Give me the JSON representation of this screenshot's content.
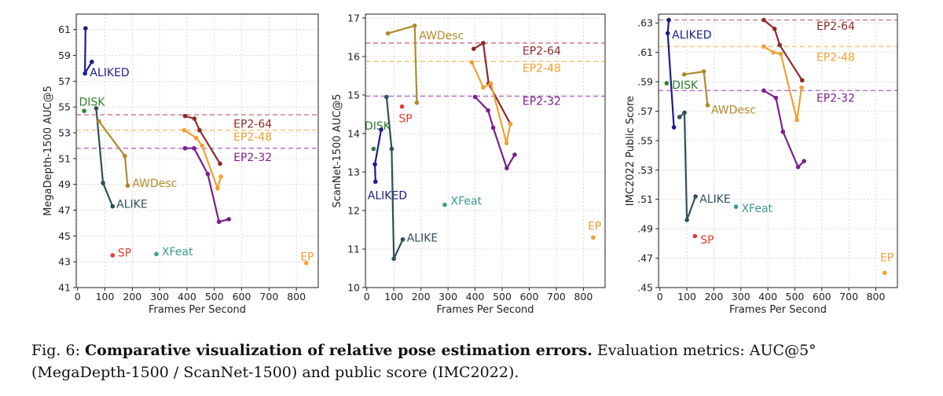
{
  "chart_data": [
    {
      "type": "line",
      "xlabel": "Frames Per Second",
      "ylabel": "MegaDepth-1500 AUC@5",
      "xlim": [
        -5,
        880
      ],
      "ylim": [
        41,
        62.2
      ],
      "xticks": [
        0,
        100,
        200,
        300,
        400,
        500,
        600,
        700,
        800
      ],
      "yticks": [
        41,
        43,
        45,
        47,
        49,
        51,
        53,
        55,
        57,
        59,
        61
      ],
      "ytick_labels": [
        "41",
        "43",
        "45",
        "47",
        "49",
        "51",
        "53",
        "55",
        "57",
        "59",
        "61"
      ],
      "grid": true,
      "series": [
        {
          "name": "ALIKED",
          "color": "#1c1c8c",
          "points": [
            [
              29,
              61.1
            ],
            [
              27,
              57.6
            ],
            [
              52,
              58.5
            ]
          ],
          "label_at": [
            45,
            57.7
          ]
        },
        {
          "name": "DISK",
          "color": "#2e7d2e",
          "points": [
            [
              24,
              54.7
            ]
          ],
          "label_at": [
            5,
            55.4
          ]
        },
        {
          "name": "ALIKE",
          "color": "#304f58",
          "points": [
            [
              68,
              54.9
            ],
            [
              93,
              49.1
            ],
            [
              128,
              47.3
            ]
          ],
          "label_at": [
            142,
            47.5
          ]
        },
        {
          "name": "AWDesc",
          "color": "#b08b2a",
          "points": [
            [
              78,
              53.9
            ],
            [
              173,
              51.2
            ],
            [
              183,
              48.9
            ]
          ],
          "label_at": [
            200,
            49.1
          ]
        },
        {
          "name": "SP",
          "color": "#e53935",
          "points": [
            [
              128,
              43.5
            ]
          ],
          "label_at": [
            147,
            43.7
          ]
        },
        {
          "name": "XFeat",
          "color": "#3a9a8e",
          "points": [
            [
              288,
              43.6
            ]
          ],
          "label_at": [
            308,
            43.8
          ]
        },
        {
          "name": "EP",
          "color": "#f0a030",
          "points": [
            [
              836,
              42.9
            ]
          ],
          "label_at": [
            815,
            43.4
          ]
        },
        {
          "name": "EP2-64",
          "color": "#8e2a2a",
          "points": [
            [
              393,
              54.3
            ],
            [
              427,
              54.1
            ],
            [
              446,
              53.2
            ],
            [
              521,
              50.6
            ]
          ],
          "label_at": [
            570,
            53.7
          ]
        },
        {
          "name": "EP2-48",
          "color": "#f0a030",
          "points": [
            [
              390,
              53.2
            ],
            [
              434,
              52.6
            ],
            [
              455,
              52.0
            ],
            [
              512,
              48.7
            ],
            [
              524,
              49.6
            ]
          ],
          "label_at": [
            570,
            52.7
          ]
        },
        {
          "name": "EP2-32",
          "color": "#7b1f8c",
          "points": [
            [
              393,
              51.8
            ],
            [
              426,
              51.8
            ],
            [
              476,
              49.8
            ],
            [
              517,
              46.1
            ],
            [
              553,
              46.3
            ]
          ],
          "label_at": [
            570,
            51.1
          ]
        }
      ],
      "hlines": [
        {
          "y": 54.4,
          "color": "#c47a80"
        },
        {
          "y": 53.2,
          "color": "#f5c07a"
        },
        {
          "y": 51.8,
          "color": "#b26fc8"
        }
      ]
    },
    {
      "type": "line",
      "xlabel": "Frames Per Second",
      "ylabel": "ScanNet-1500 AUC@5",
      "xlim": [
        -5,
        880
      ],
      "ylim": [
        10,
        17.1
      ],
      "xticks": [
        0,
        100,
        200,
        300,
        400,
        500,
        600,
        700,
        800
      ],
      "yticks": [
        10,
        11,
        12,
        13,
        14,
        15,
        16,
        17
      ],
      "ytick_labels": [
        "10",
        "11",
        "12",
        "13",
        "14",
        "15",
        "16",
        "17"
      ],
      "grid": true,
      "series": [
        {
          "name": "AWDesc",
          "color": "#b08b2a",
          "points": [
            [
              78,
              16.6
            ],
            [
              177,
              16.8
            ],
            [
              185,
              14.8
            ]
          ],
          "label_at": [
            193,
            16.55
          ]
        },
        {
          "name": "EP2-64",
          "color": "#8e2a2a",
          "points": [
            [
              395,
              16.2
            ],
            [
              430,
              16.35
            ],
            [
              450,
              15.3
            ],
            [
              530,
              14.25
            ]
          ],
          "label_at": [
            575,
            16.15
          ]
        },
        {
          "name": "EP2-48",
          "color": "#f0a030",
          "points": [
            [
              388,
              15.85
            ],
            [
              430,
              15.2
            ],
            [
              458,
              15.3
            ],
            [
              516,
              13.75
            ],
            [
              530,
              14.25
            ]
          ],
          "label_at": [
            575,
            15.7
          ]
        },
        {
          "name": "EP2-32",
          "color": "#7b1f8c",
          "points": [
            [
              400,
              14.95
            ],
            [
              448,
              14.6
            ],
            [
              467,
              14.15
            ],
            [
              517,
              13.1
            ],
            [
              546,
              13.45
            ]
          ],
          "label_at": [
            575,
            14.85
          ]
        },
        {
          "name": "SP",
          "color": "#e53935",
          "points": [
            [
              130,
              14.7
            ]
          ],
          "label_at": [
            118,
            14.4
          ]
        },
        {
          "name": "DISK",
          "color": "#2e7d2e",
          "points": [
            [
              25,
              13.6
            ]
          ],
          "label_at": [
            -8,
            14.2
          ]
        },
        {
          "name": "ALIKED",
          "color": "#1c1c8c",
          "points": [
            [
              32,
              12.75
            ],
            [
              30,
              13.2
            ],
            [
              53,
              14.1
            ]
          ],
          "label_at": [
            3,
            12.4
          ]
        },
        {
          "name": "ALIKE",
          "color": "#304f58",
          "points": [
            [
              73,
              14.95
            ],
            [
              92,
              13.6
            ],
            [
              100,
              10.75
            ],
            [
              133,
              11.25
            ]
          ],
          "label_at": [
            148,
            11.3
          ]
        },
        {
          "name": "XFeat",
          "color": "#3a9a8e",
          "points": [
            [
              288,
              12.15
            ]
          ],
          "label_at": [
            310,
            12.25
          ]
        },
        {
          "name": "EP",
          "color": "#f0a030",
          "points": [
            [
              836,
              11.3
            ]
          ],
          "label_at": [
            816,
            11.6
          ]
        }
      ],
      "hlines": [
        {
          "y": 16.35,
          "color": "#c47a80"
        },
        {
          "y": 15.87,
          "color": "#f5c07a"
        },
        {
          "y": 14.97,
          "color": "#b26fc8"
        }
      ]
    },
    {
      "type": "line",
      "xlabel": "Frames Per Second",
      "ylabel": "IMC2022 Public Score",
      "xlim": [
        -5,
        880
      ],
      "ylim": [
        0.45,
        0.636
      ],
      "xticks": [
        0,
        100,
        200,
        300,
        400,
        500,
        600,
        700,
        800
      ],
      "yticks": [
        0.45,
        0.47,
        0.49,
        0.51,
        0.53,
        0.55,
        0.57,
        0.59,
        0.61,
        0.63
      ],
      "ytick_labels": [
        ".45",
        ".47",
        ".49",
        ".51",
        ".53",
        ".55",
        ".57",
        ".59",
        ".61",
        ".63"
      ],
      "grid": true,
      "series": [
        {
          "name": "ALIKED",
          "color": "#1c1c8c",
          "points": [
            [
              33,
              0.632
            ],
            [
              29,
              0.623
            ],
            [
              52,
              0.559
            ]
          ],
          "label_at": [
            45,
            0.622
          ]
        },
        {
          "name": "DISK",
          "color": "#2e7d2e",
          "points": [
            [
              25,
              0.589
            ]
          ],
          "label_at": [
            45,
            0.588
          ]
        },
        {
          "name": "AWDesc",
          "color": "#b08b2a",
          "points": [
            [
              90,
              0.595
            ],
            [
              163,
              0.597
            ],
            [
              177,
              0.574
            ]
          ],
          "label_at": [
            190,
            0.571
          ]
        },
        {
          "name": "ALIKE",
          "color": "#304f58",
          "points": [
            [
              73,
              0.566
            ],
            [
              91,
              0.569
            ],
            [
              100,
              0.496
            ],
            [
              132,
              0.512
            ]
          ],
          "label_at": [
            147,
            0.5105
          ]
        },
        {
          "name": "XFeat",
          "color": "#3a9a8e",
          "points": [
            [
              282,
              0.505
            ]
          ],
          "label_at": [
            302,
            0.504
          ]
        },
        {
          "name": "SP",
          "color": "#e53935",
          "points": [
            [
              130,
              0.485
            ]
          ],
          "label_at": [
            150,
            0.4825
          ]
        },
        {
          "name": "EP",
          "color": "#f0a030",
          "points": [
            [
              833,
              0.46
            ]
          ],
          "label_at": [
            816,
            0.4705
          ]
        },
        {
          "name": "EP2-64",
          "color": "#8e2a2a",
          "points": [
            [
              385,
              0.632
            ],
            [
              425,
              0.626
            ],
            [
              444,
              0.615
            ],
            [
              527,
              0.591
            ]
          ],
          "label_at": [
            580,
            0.628
          ]
        },
        {
          "name": "EP2-48",
          "color": "#f0a030",
          "points": [
            [
              385,
              0.614
            ],
            [
              420,
              0.61
            ],
            [
              448,
              0.609
            ],
            [
              508,
              0.564
            ],
            [
              525,
              0.586
            ]
          ],
          "label_at": [
            580,
            0.607
          ]
        },
        {
          "name": "EP2-32",
          "color": "#7b1f8c",
          "points": [
            [
              385,
              0.584
            ],
            [
              430,
              0.579
            ],
            [
              456,
              0.556
            ],
            [
              512,
              0.532
            ],
            [
              534,
              0.536
            ]
          ],
          "label_at": [
            580,
            0.579
          ]
        }
      ],
      "hlines": [
        {
          "y": 0.632,
          "color": "#c47a80"
        },
        {
          "y": 0.614,
          "color": "#f5c07a"
        },
        {
          "y": 0.584,
          "color": "#b26fc8"
        }
      ]
    }
  ],
  "caption": {
    "prefix": "Fig. 6: ",
    "bold": "Comparative visualization of relative pose estimation errors.",
    "rest": " Evaluation metrics: AUC@5° (MegaDepth-1500 / ScanNet-1500) and public score (IMC2022)."
  }
}
